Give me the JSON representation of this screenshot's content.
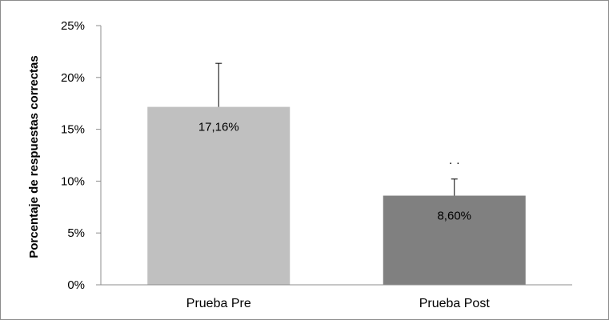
{
  "chart_data": {
    "type": "bar",
    "title": "",
    "xlabel": "",
    "ylabel": "Porcentaje de respuestas correctas",
    "ylim": [
      0,
      25
    ],
    "yticks": [
      0,
      5,
      10,
      15,
      20,
      25
    ],
    "ytick_labels": [
      "0%",
      "5%",
      "10%",
      "15%",
      "20%",
      "25%"
    ],
    "categories": [
      "Prueba Pre",
      "Prueba Post"
    ],
    "values": [
      17.16,
      8.6
    ],
    "data_labels": [
      "17,16%",
      "8,60%"
    ],
    "error_upper": [
      4.2,
      1.6
    ],
    "bar_colors": [
      "#c0c0c0",
      "#808080"
    ],
    "grid": false,
    "legend": "none",
    "significance_marker": "· ·"
  }
}
